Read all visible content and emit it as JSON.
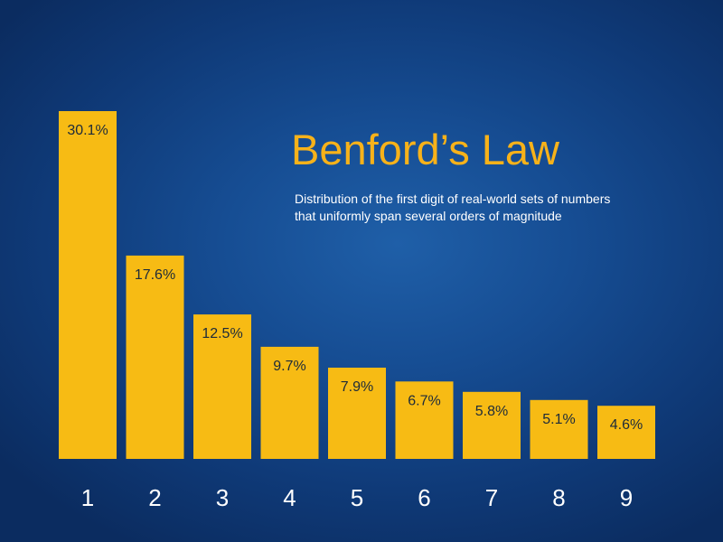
{
  "chart_data": {
    "type": "bar",
    "title": "Benford’s Law",
    "subtitle": [
      "Distribution of the first digit of real-world sets of numbers",
      "that uniformly span several orders of magnitude"
    ],
    "categories": [
      "1",
      "2",
      "3",
      "4",
      "5",
      "6",
      "7",
      "8",
      "9"
    ],
    "values": [
      30.1,
      17.6,
      12.5,
      9.7,
      7.9,
      6.7,
      5.8,
      5.1,
      4.6
    ],
    "data_labels": [
      "30.1%",
      "17.6%",
      "12.5%",
      "9.7%",
      "7.9%",
      "6.7%",
      "5.8%",
      "5.1%",
      "4.6%"
    ],
    "xlabel": "",
    "ylabel": "",
    "ylim": [
      0,
      30.1
    ],
    "grid": false,
    "legend": "none",
    "colors": {
      "bar": "#f7bb14",
      "title": "#f7b21a",
      "data_label": "#1c2a3a",
      "tick_label": "#ffffff",
      "background": "#164d93"
    }
  }
}
